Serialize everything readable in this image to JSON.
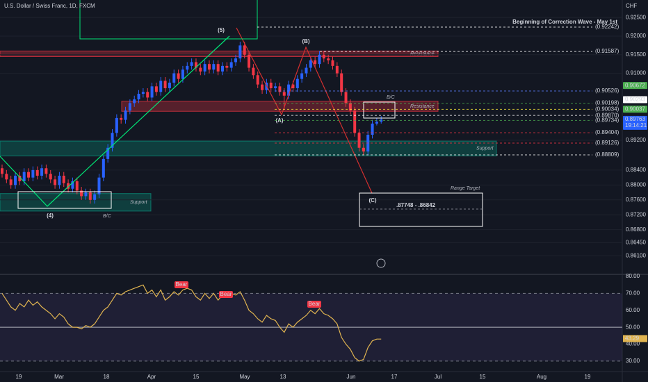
{
  "chart_data": {
    "type": "candlestick",
    "title": "U.S. Dollar / Swiss Franc, 1D, FXCM",
    "currency": "CHF",
    "ylim": [
      0.856,
      0.9297
    ],
    "yticks": [
      {
        "value": 0.925,
        "label": "0.92500"
      },
      {
        "value": 0.92,
        "label": "0.92000"
      },
      {
        "value": 0.915,
        "label": "0.91500"
      },
      {
        "value": 0.91,
        "label": "0.91000"
      },
      {
        "value": 0.892,
        "label": "0.89200"
      },
      {
        "value": 0.884,
        "label": "0.88400"
      },
      {
        "value": 0.88,
        "label": "0.88000"
      },
      {
        "value": 0.876,
        "label": "0.87600"
      },
      {
        "value": 0.872,
        "label": "0.87200"
      },
      {
        "value": 0.868,
        "label": "0.86800"
      },
      {
        "value": 0.8645,
        "label": "0.86450"
      },
      {
        "value": 0.861,
        "label": "0.86100"
      }
    ],
    "up_color": "#2962ff",
    "down_color": "#f23645",
    "open": [
      0.8845,
      0.883,
      0.8815,
      0.88,
      0.8825,
      0.881,
      0.8835,
      0.882,
      0.884,
      0.8825,
      0.8845,
      0.883,
      0.8815,
      0.88,
      0.8825,
      0.8805,
      0.879,
      0.881,
      0.8785,
      0.877,
      0.878,
      0.876,
      0.8775,
      0.882,
      0.887,
      0.89,
      0.894,
      0.898,
      0.8975,
      0.9,
      0.902,
      0.903,
      0.9045,
      0.905,
      0.9035,
      0.9065,
      0.905,
      0.908,
      0.906,
      0.9075,
      0.91,
      0.9085,
      0.911,
      0.912,
      0.913,
      0.9115,
      0.9105,
      0.9125,
      0.911,
      0.9125,
      0.9105,
      0.912,
      0.9115,
      0.913,
      0.914,
      0.9175,
      0.915,
      0.9115,
      0.9095,
      0.907,
      0.9055,
      0.9075,
      0.906,
      0.9065,
      0.905,
      0.904,
      0.907,
      0.906,
      0.9085,
      0.91,
      0.9115,
      0.9135,
      0.9125,
      0.915,
      0.914,
      0.9135,
      0.912,
      0.91,
      0.905,
      0.902,
      0.9,
      0.894,
      0.89,
      0.889,
      0.8935,
      0.8965,
      0.897
    ],
    "high": [
      0.8855,
      0.884,
      0.8825,
      0.8835,
      0.8835,
      0.8845,
      0.8845,
      0.885,
      0.885,
      0.8855,
      0.8855,
      0.884,
      0.8825,
      0.8835,
      0.8835,
      0.8815,
      0.882,
      0.882,
      0.8795,
      0.879,
      0.879,
      0.8785,
      0.883,
      0.888,
      0.891,
      0.895,
      0.899,
      0.899,
      0.901,
      0.903,
      0.904,
      0.9055,
      0.906,
      0.906,
      0.9075,
      0.9075,
      0.909,
      0.909,
      0.9085,
      0.911,
      0.911,
      0.912,
      0.913,
      0.914,
      0.914,
      0.9125,
      0.9135,
      0.9135,
      0.9135,
      0.9135,
      0.913,
      0.913,
      0.914,
      0.915,
      0.9185,
      0.9185,
      0.916,
      0.9125,
      0.9105,
      0.908,
      0.9085,
      0.9085,
      0.9075,
      0.9075,
      0.906,
      0.908,
      0.908,
      0.9095,
      0.911,
      0.9125,
      0.9145,
      0.9145,
      0.916,
      0.916,
      0.915,
      0.9145,
      0.913,
      0.911,
      0.906,
      0.903,
      0.901,
      0.895,
      0.891,
      0.8945,
      0.8975,
      0.898,
      0.8985
    ],
    "low": [
      0.882,
      0.8805,
      0.879,
      0.879,
      0.88,
      0.88,
      0.881,
      0.881,
      0.8815,
      0.8815,
      0.882,
      0.8805,
      0.879,
      0.879,
      0.8795,
      0.878,
      0.878,
      0.8775,
      0.876,
      0.876,
      0.875,
      0.875,
      0.8765,
      0.881,
      0.886,
      0.889,
      0.893,
      0.8965,
      0.8965,
      0.899,
      0.901,
      0.902,
      0.9035,
      0.9025,
      0.9025,
      0.904,
      0.904,
      0.905,
      0.905,
      0.9065,
      0.9075,
      0.9075,
      0.91,
      0.911,
      0.9105,
      0.9095,
      0.9095,
      0.91,
      0.91,
      0.9095,
      0.9095,
      0.9105,
      0.9105,
      0.912,
      0.913,
      0.914,
      0.9105,
      0.9085,
      0.906,
      0.9045,
      0.9045,
      0.905,
      0.905,
      0.904,
      0.9005,
      0.903,
      0.905,
      0.905,
      0.9075,
      0.909,
      0.9105,
      0.9115,
      0.9115,
      0.913,
      0.9125,
      0.911,
      0.909,
      0.904,
      0.901,
      0.899,
      0.893,
      0.889,
      0.888,
      0.888,
      0.8925,
      0.896,
      0.8965
    ],
    "close": [
      0.883,
      0.8815,
      0.88,
      0.8825,
      0.881,
      0.8835,
      0.882,
      0.884,
      0.8825,
      0.8845,
      0.883,
      0.8815,
      0.88,
      0.8825,
      0.8805,
      0.879,
      0.881,
      0.8785,
      0.877,
      0.878,
      0.876,
      0.8775,
      0.882,
      0.887,
      0.89,
      0.894,
      0.898,
      0.8975,
      0.9,
      0.902,
      0.903,
      0.9045,
      0.905,
      0.9035,
      0.9065,
      0.905,
      0.908,
      0.906,
      0.9075,
      0.91,
      0.9085,
      0.911,
      0.912,
      0.913,
      0.9115,
      0.9105,
      0.9125,
      0.911,
      0.9125,
      0.9105,
      0.912,
      0.9115,
      0.913,
      0.914,
      0.9175,
      0.915,
      0.9115,
      0.9095,
      0.907,
      0.9055,
      0.9075,
      0.906,
      0.9065,
      0.905,
      0.904,
      0.907,
      0.906,
      0.9085,
      0.91,
      0.9115,
      0.9135,
      0.9125,
      0.915,
      0.914,
      0.9135,
      0.912,
      0.91,
      0.905,
      0.902,
      0.9,
      0.894,
      0.89,
      0.889,
      0.8935,
      0.8965,
      0.897,
      0.8976
    ],
    "dates": [
      "19",
      "Mar",
      "18",
      "Apr",
      "15",
      "May",
      "13",
      "Jun",
      "17",
      "Jul",
      "15",
      "Aug",
      "19"
    ],
    "zones": [
      {
        "label": "Resistance",
        "from": 0.9145,
        "to": 0.916,
        "color": "#f23645"
      },
      {
        "label": "Resistance",
        "from": 0.8998,
        "to": 0.9025,
        "color": "#f23645"
      },
      {
        "label": "Support",
        "from": 0.8878,
        "to": 0.8918,
        "color": "#089981"
      },
      {
        "label": "Support",
        "from": 0.873,
        "to": 0.8777,
        "color": "#089981"
      }
    ],
    "levels": [
      {
        "value": 0.92242,
        "label": "(0.92242)",
        "color": "#ffffff",
        "note": "Beginning of Correction Wave - May 1st"
      },
      {
        "value": 0.91587,
        "label": "(0.91587)",
        "color": "#ffffff"
      },
      {
        "value": 0.90526,
        "label": "(0.90526)",
        "color": "#5b7fff"
      },
      {
        "value": 0.90198,
        "label": "(0.90198)",
        "color": "#4caf50"
      },
      {
        "value": 0.90034,
        "label": "(0.90034)",
        "color": "#ffeb3b"
      },
      {
        "value": 0.8987,
        "label": "(0.89870)",
        "color": "#ffffff"
      },
      {
        "value": 0.89734,
        "label": "(0.89734)",
        "color": "#4caf50"
      },
      {
        "value": 0.89404,
        "label": "(0.89404)",
        "color": "#f23645"
      },
      {
        "value": 0.89126,
        "label": "(0.89126)",
        "color": "#f23645"
      },
      {
        "value": 0.88809,
        "label": "(0.88809)",
        "color": "#ffffff"
      }
    ],
    "axis_tags": [
      {
        "value": 0.90672,
        "label": "0.90672",
        "color": "#4caf50"
      },
      {
        "value": 0.90293,
        "label": "0.90293",
        "color": "#ffffff"
      },
      {
        "value": 0.90037,
        "label": "0.90037",
        "color": "#4caf50"
      },
      {
        "value": 0.89763,
        "label": "0.89763",
        "color": "#2962ff",
        "countdown": "19:14:21"
      }
    ],
    "waves": [
      "(5)",
      "(4)",
      "(B)",
      "(A)",
      "(C)"
    ],
    "bc_labels": [
      "B/C",
      "B/C"
    ],
    "range_target": {
      "title": "Range Target",
      "text": ".87748 - .86842"
    },
    "rsi": {
      "color": "#e0b450",
      "values": [
        70,
        66,
        62,
        60,
        64,
        62,
        66,
        63,
        65,
        62,
        60,
        58,
        55,
        58,
        56,
        52,
        50,
        50,
        49,
        51,
        50,
        52,
        56,
        60,
        62,
        66,
        70,
        69,
        71,
        72,
        73,
        74,
        75,
        70,
        72,
        68,
        72,
        66,
        68,
        71,
        69,
        72,
        73,
        72,
        68,
        66,
        70,
        67,
        70,
        66,
        69,
        68,
        70,
        69,
        71,
        66,
        60,
        58,
        55,
        53,
        57,
        55,
        54,
        50,
        47,
        52,
        50,
        53,
        55,
        57,
        60,
        58,
        61,
        58,
        57,
        55,
        52,
        44,
        40,
        37,
        32,
        30,
        31,
        38,
        42,
        43,
        43
      ],
      "ylim": [
        23.8,
        83.3
      ],
      "yticks": [
        {
          "value": 80,
          "label": "80.00"
        },
        {
          "value": 70,
          "label": "70.00"
        },
        {
          "value": 60,
          "label": "60.00"
        },
        {
          "value": 50,
          "label": "50.00"
        },
        {
          "value": 40,
          "label": "40.00"
        },
        {
          "value": 30,
          "label": "30.00"
        }
      ],
      "current": {
        "value": 43.29,
        "label": "43.29"
      },
      "signals": [
        "Bear",
        "Bear",
        "Bear"
      ]
    }
  }
}
